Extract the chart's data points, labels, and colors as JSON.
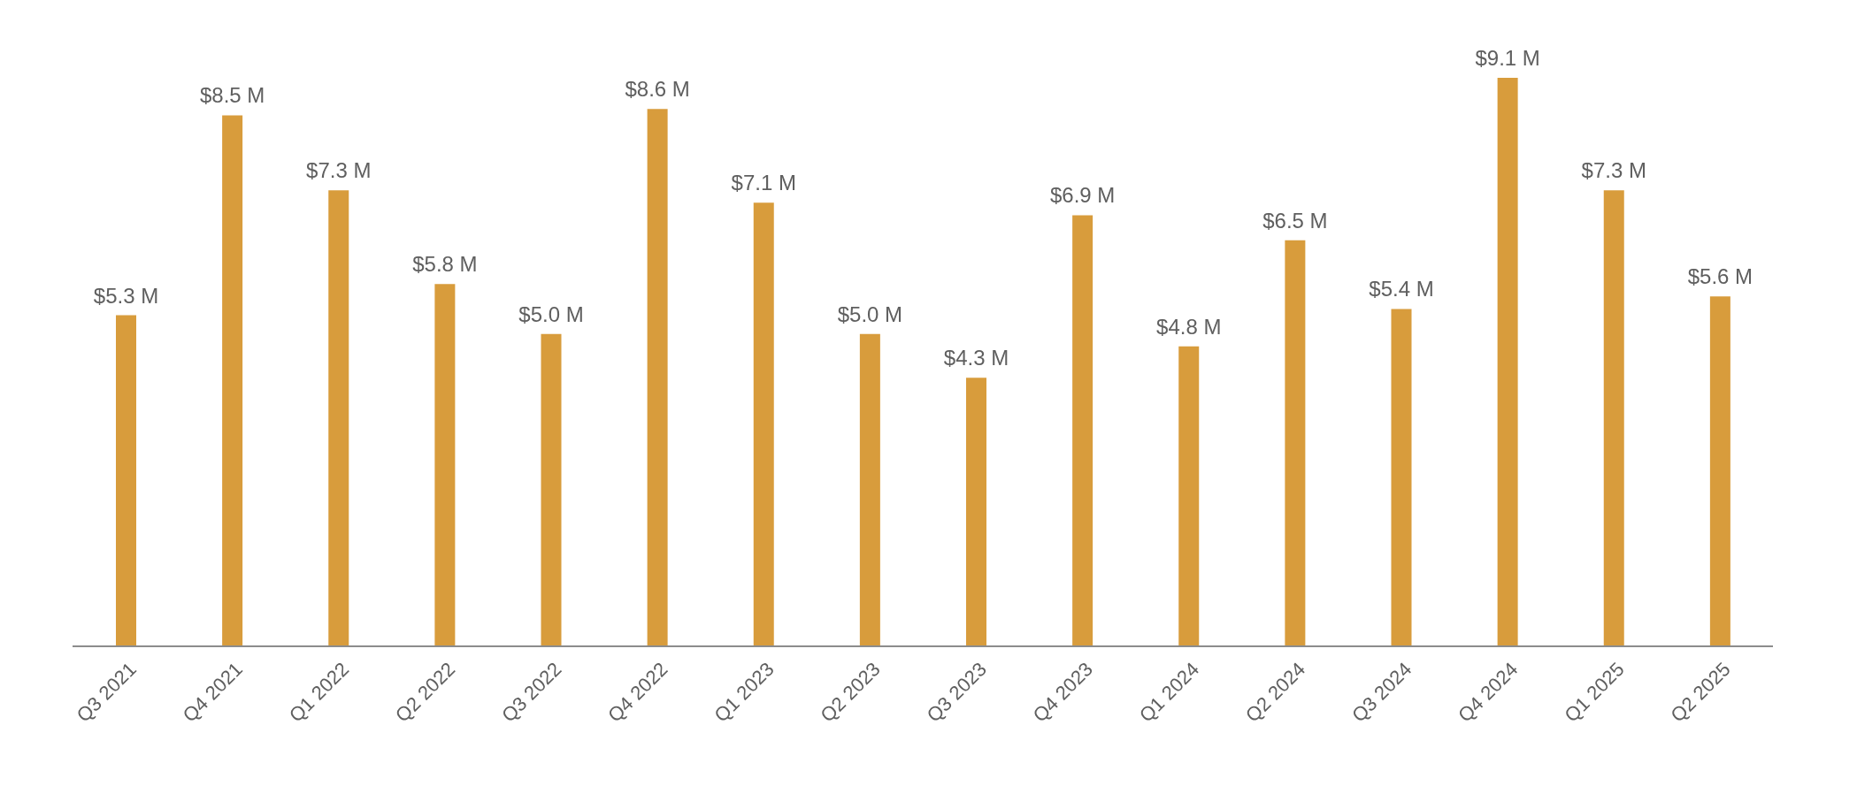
{
  "chart_data": {
    "type": "bar",
    "categories": [
      "Q3 2021",
      "Q4 2021",
      "Q1 2022",
      "Q2 2022",
      "Q3 2022",
      "Q4 2022",
      "Q1 2023",
      "Q2 2023",
      "Q3 2023",
      "Q4 2023",
      "Q1 2024",
      "Q2 2024",
      "Q3 2024",
      "Q4 2024",
      "Q1 2025",
      "Q2 2025"
    ],
    "values": [
      5.3,
      8.5,
      7.3,
      5.8,
      5.0,
      8.6,
      7.1,
      5.0,
      4.3,
      6.9,
      4.8,
      6.5,
      5.4,
      9.1,
      7.3,
      5.6
    ],
    "value_labels": [
      "$5.3 M",
      "$8.5 M",
      "$7.3 M",
      "$5.8 M",
      "$5.0 M",
      "$8.6 M",
      "$7.1 M",
      "$5.0 M",
      "$4.3 M",
      "$6.9 M",
      "$4.8 M",
      "$6.5 M",
      "$5.4 M",
      "$9.1 M",
      "$7.3 M",
      "$5.6 M"
    ],
    "color": "#d89c3c"
  }
}
